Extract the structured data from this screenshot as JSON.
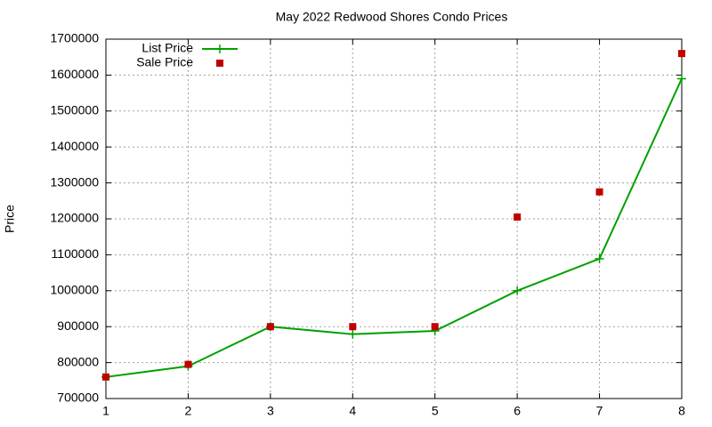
{
  "chart_data": {
    "type": "line",
    "title": "May 2022 Redwood Shores Condo Prices",
    "y_label": "Price",
    "x": [
      1,
      2,
      3,
      4,
      5,
      6,
      7,
      8
    ],
    "series": [
      {
        "name": "List Price",
        "color": "#00a000",
        "line": true,
        "marker": "plus",
        "values": [
          760000,
          790000,
          900000,
          879000,
          888000,
          1000000,
          1089000,
          1590000
        ]
      },
      {
        "name": "Sale Price",
        "color": "#c00000",
        "line": false,
        "marker": "square",
        "values": [
          760000,
          795000,
          900000,
          900000,
          900000,
          1205000,
          1275000,
          1660000
        ]
      }
    ],
    "xlim": [
      1,
      8
    ],
    "xticks": [
      1,
      2,
      3,
      4,
      5,
      6,
      7,
      8
    ],
    "ylim": [
      700000,
      1700000
    ],
    "yticks": [
      700000,
      800000,
      900000,
      1000000,
      1100000,
      1200000,
      1300000,
      1400000,
      1500000,
      1600000,
      1700000
    ],
    "grid": true,
    "legend": "top-left"
  }
}
